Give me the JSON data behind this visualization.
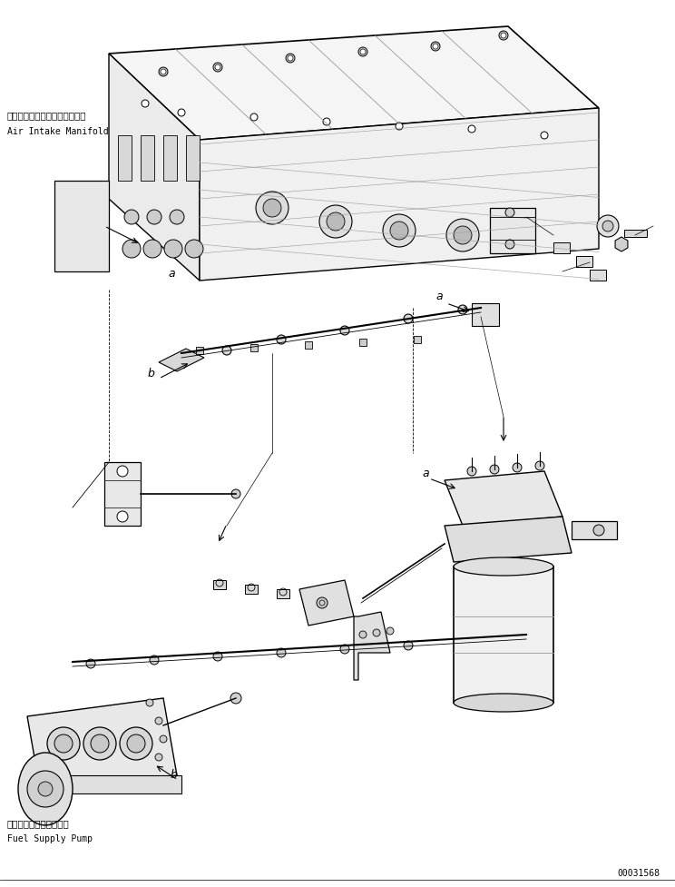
{
  "bg_color": "#ffffff",
  "line_color": "#000000",
  "fig_width": 7.44,
  "fig_height": 9.78,
  "dpi": 100,
  "label_air_intake_jp": "エアーインテークマニホールド",
  "label_air_intake_en": "Air Intake Manifold",
  "label_fuel_pump_jp": "フェエルサプライボンプ",
  "label_fuel_pump_en": "Fuel Supply Pump",
  "label_doc_number": "00031568",
  "label_a": "a",
  "label_b": "b"
}
